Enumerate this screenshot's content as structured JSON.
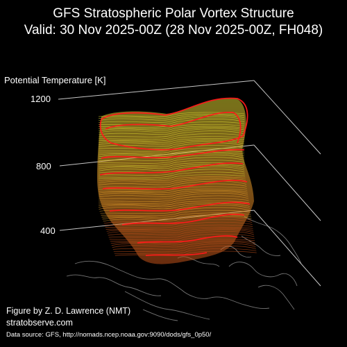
{
  "chart_data": {
    "type": "3d-isosurface",
    "title": "GFS Stratospheric Polar Vortex Structure",
    "subtitle": "Valid: 30 Nov 2025-00Z  (28 Nov 2025-00Z, FH048)",
    "zlabel": "Potential Temperature [K]",
    "zticks": [
      400,
      800,
      1200
    ],
    "colors": {
      "background": "#000000",
      "surface_low": "#c0501a",
      "surface_mid": "#e6a02a",
      "surface_high": "#d8d030",
      "contour": "#ff1a1a",
      "axes": "#c8c8c8",
      "coastline": "#8a8a8a"
    }
  },
  "credit": {
    "author": "Figure by Z. D. Lawrence (NMT)",
    "site": "stratobserve.com",
    "source": "Data source: GFS, http://nomads.ncep.noaa.gov:9090/dods/gfs_0p50/"
  }
}
